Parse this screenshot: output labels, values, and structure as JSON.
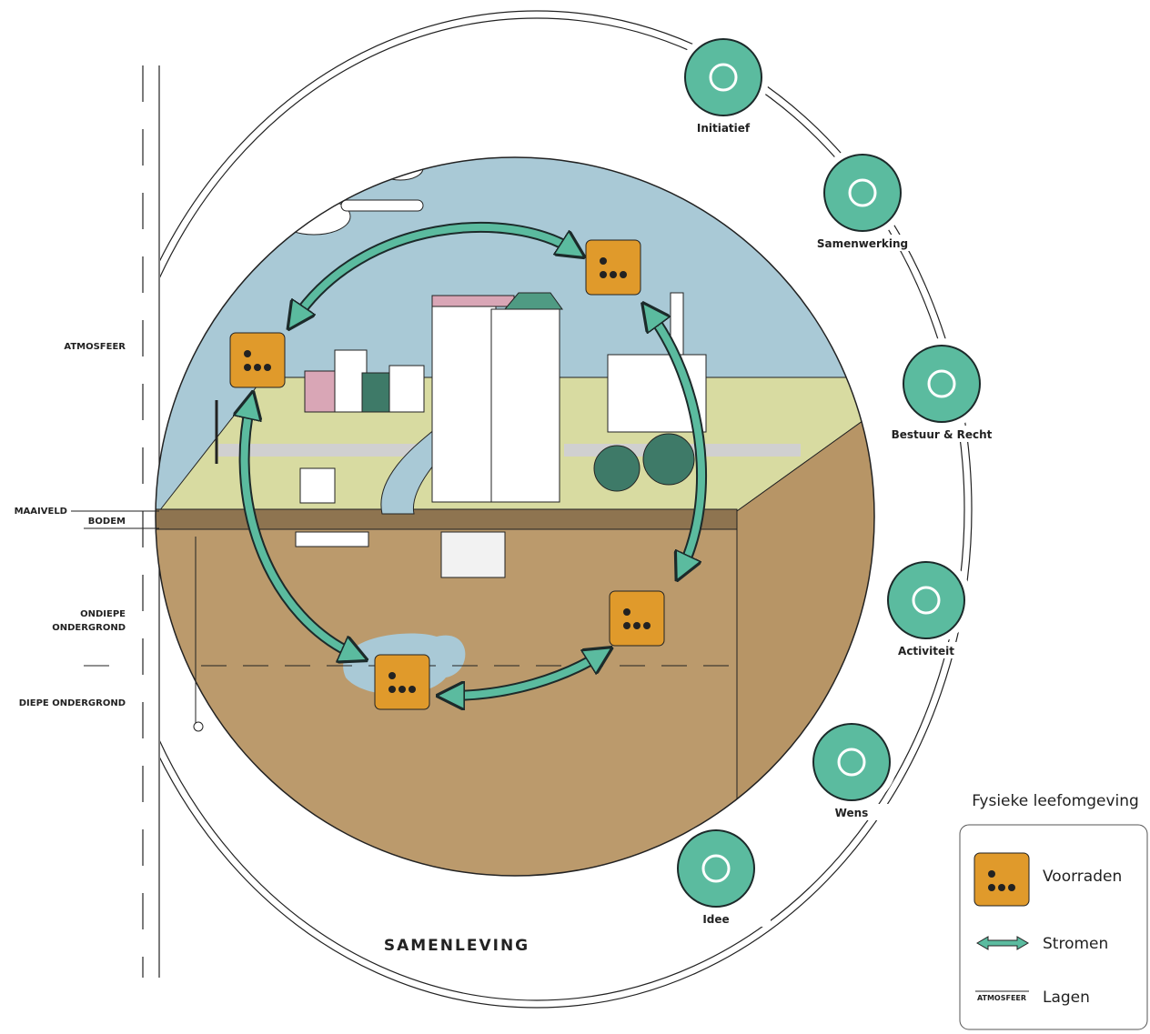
{
  "layers": {
    "atmosfeer": "ATMOSFEER",
    "maaiveld": "MAAIVELD",
    "bodem": "BODEM",
    "ondiepe_ondergrond": [
      "ONDIEPE",
      "ONDERGROND"
    ],
    "diepe_ondergrond": "DIEPE ONDERGROND"
  },
  "ring": {
    "title": "SAMENLEVING",
    "items": [
      "Initiatief",
      "Samenwerking",
      "Bestuur & Recht",
      "Activiteit",
      "Wens",
      "Idee"
    ]
  },
  "legend": {
    "title": "Fysieke leefomgeving",
    "voorraden": "Voorraden",
    "stromen": "Stromen",
    "layer_sample": "ATMOSFEER",
    "lagen": "Lagen"
  }
}
